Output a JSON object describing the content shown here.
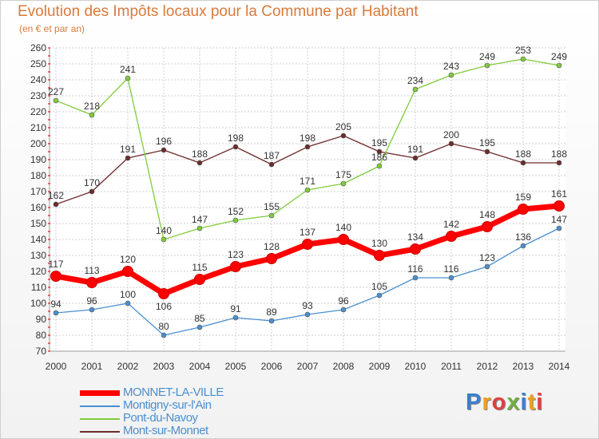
{
  "header": {
    "title": "Evolution des Impôts locaux pour la Commune par Habitant",
    "subtitle": "(en € et par an)"
  },
  "colors": {
    "title": "#d97a3a",
    "grid": "#cfcfcf",
    "axis_tick": "#cc0000"
  },
  "chart_data": {
    "type": "line",
    "title": "Evolution des Impôts locaux pour la Commune par Habitant",
    "subtitle": "(en € et par an)",
    "xlabel": "",
    "ylabel": "",
    "ylim": [
      70,
      260
    ],
    "ytick_step": 10,
    "grid": true,
    "legend_position": "bottom-left",
    "x": [
      "2000",
      "2001",
      "2002",
      "2003",
      "2004",
      "2005",
      "2006",
      "2007",
      "2008",
      "2009",
      "2010",
      "2011",
      "2012",
      "2013",
      "2014"
    ],
    "series": [
      {
        "name": "Mont-sur-Monnet",
        "color": "#6d2b2b",
        "values": [
          162,
          170,
          191,
          196,
          188,
          198,
          187,
          198,
          205,
          195,
          191,
          200,
          195,
          188,
          188
        ]
      },
      {
        "name": "Pont-du-Navoy",
        "color": "#7fcc3a",
        "values": [
          227,
          218,
          241,
          140,
          147,
          152,
          155,
          171,
          175,
          186,
          234,
          243,
          249,
          253,
          249
        ]
      },
      {
        "name": "Montigny-sur-l'Ain",
        "color": "#4a8fd0",
        "values": [
          94,
          96,
          100,
          80,
          85,
          91,
          89,
          93,
          96,
          105,
          116,
          116,
          123,
          136,
          147
        ]
      },
      {
        "name": "MONNET-LA-VILLE",
        "color": "#ff0000",
        "values": [
          117,
          113,
          120,
          106,
          115,
          123,
          128,
          137,
          140,
          130,
          134,
          142,
          148,
          159,
          161
        ]
      }
    ]
  },
  "legend": {
    "items": [
      {
        "label": "MONNET-LA-VILLE",
        "color": "#ff0000"
      },
      {
        "label": "Montigny-sur-l'Ain",
        "color": "#4a8fd0"
      },
      {
        "label": "Pont-du-Navoy",
        "color": "#7fcc3a"
      },
      {
        "label": "Mont-sur-Monnet",
        "color": "#6d2b2b"
      }
    ]
  },
  "logo": {
    "text": "Proxiti",
    "letter_colors": [
      "#3a7fd0",
      "#f0a020",
      "#e04040",
      "#70b040",
      "#3a7fd0",
      "#f0a020",
      "#e04040"
    ]
  }
}
